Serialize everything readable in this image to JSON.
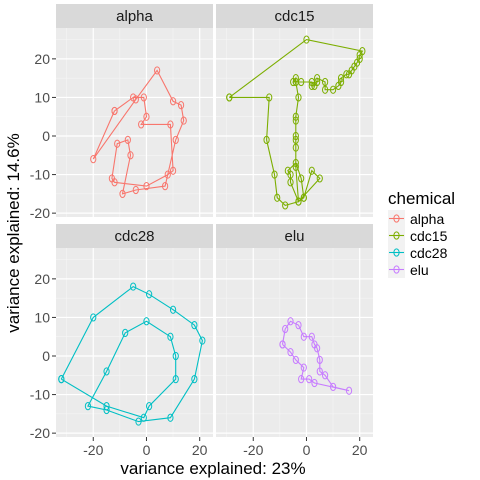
{
  "chart_data": {
    "type": "line",
    "xlabel": "variance explained: 23%",
    "ylabel": "variance explained: 14.6%",
    "xlim": [
      -34,
      25
    ],
    "ylim": [
      -21,
      28
    ],
    "x_ticks": [
      -20,
      0,
      20
    ],
    "y_ticks": [
      -20,
      -10,
      0,
      10,
      20
    ],
    "grid": true,
    "legend": {
      "title": "chemical",
      "position": "right",
      "entries": [
        "alpha",
        "cdc15",
        "cdc28",
        "elu"
      ]
    },
    "colors": {
      "alpha": "#F8766D",
      "cdc15": "#7CAE00",
      "cdc28": "#00BFC4",
      "elu": "#C77CFF"
    },
    "panels": [
      {
        "name": "alpha",
        "points": [
          [
            -12,
            6.5
          ],
          [
            -5,
            10
          ],
          [
            -1,
            10
          ],
          [
            0,
            5
          ],
          [
            -2,
            3
          ],
          [
            9,
            3
          ],
          [
            10,
            -9
          ],
          [
            8,
            -10
          ],
          [
            0,
            -13
          ],
          [
            -12,
            -12
          ],
          [
            -13,
            -11
          ],
          [
            -11,
            -2
          ],
          [
            -7,
            -1
          ],
          [
            -6,
            -5
          ],
          [
            -9,
            -15
          ],
          [
            -4,
            -14
          ],
          [
            7,
            -13
          ],
          [
            11,
            -1
          ],
          [
            14,
            4
          ],
          [
            13,
            8
          ],
          [
            10,
            9
          ],
          [
            4,
            17
          ],
          [
            -4,
            9.5
          ],
          [
            -20,
            -6
          ],
          [
            -12,
            6.5
          ]
        ]
      },
      {
        "name": "cdc15",
        "points": [
          [
            -29,
            10
          ],
          [
            -14,
            10
          ],
          [
            -15,
            -1
          ],
          [
            -12,
            -10
          ],
          [
            -11,
            -16
          ],
          [
            -8,
            -18
          ],
          [
            -3,
            -17
          ],
          [
            -1,
            -16
          ],
          [
            2,
            -9
          ],
          [
            5,
            -11
          ],
          [
            -3,
            -17
          ],
          [
            -6,
            -12
          ],
          [
            -6,
            -10
          ],
          [
            -7,
            -9
          ],
          [
            -4,
            -7
          ],
          [
            -2,
            -11
          ],
          [
            -1,
            -16
          ],
          [
            -3,
            -17
          ],
          [
            -4,
            -8
          ],
          [
            -4,
            -3
          ],
          [
            -4,
            -1
          ],
          [
            -4,
            0
          ],
          [
            -4,
            4
          ],
          [
            -4,
            5
          ],
          [
            -3,
            10
          ],
          [
            -4,
            14
          ],
          [
            -4,
            15
          ],
          [
            -5,
            14
          ],
          [
            -2,
            14
          ],
          [
            2,
            14
          ],
          [
            2,
            13
          ],
          [
            3,
            13
          ],
          [
            4,
            14
          ],
          [
            4,
            15
          ],
          [
            7,
            14
          ],
          [
            7,
            12
          ],
          [
            10,
            12
          ],
          [
            12,
            13
          ],
          [
            13,
            14
          ],
          [
            13,
            15
          ],
          [
            15,
            16
          ],
          [
            16,
            16
          ],
          [
            17,
            17
          ],
          [
            18,
            18
          ],
          [
            19,
            19
          ],
          [
            20,
            20
          ],
          [
            20,
            21
          ],
          [
            21,
            22
          ],
          [
            0,
            25
          ],
          [
            -29,
            10
          ]
        ]
      },
      {
        "name": "cdc28",
        "points": [
          [
            -32,
            -6
          ],
          [
            -20,
            10
          ],
          [
            -5,
            18
          ],
          [
            1,
            16
          ],
          [
            10,
            12
          ],
          [
            18,
            8
          ],
          [
            21,
            4
          ],
          [
            18,
            -6
          ],
          [
            9,
            -16
          ],
          [
            -3,
            -17
          ],
          [
            -15,
            -14
          ],
          [
            -22,
            -13
          ],
          [
            -15,
            -4
          ],
          [
            -8,
            6
          ],
          [
            0,
            9
          ],
          [
            9,
            5
          ],
          [
            11,
            0
          ],
          [
            11,
            -6
          ],
          [
            1,
            -13
          ],
          [
            -1,
            -16
          ],
          [
            -15,
            -13
          ],
          [
            -32,
            -6
          ]
        ]
      },
      {
        "name": "elu",
        "points": [
          [
            -9,
            3
          ],
          [
            -8,
            7
          ],
          [
            -6,
            9
          ],
          [
            -3,
            8
          ],
          [
            -1,
            5
          ],
          [
            2,
            5
          ],
          [
            3,
            3
          ],
          [
            4,
            2
          ],
          [
            5,
            -1
          ],
          [
            5,
            -4
          ],
          [
            7,
            -5
          ],
          [
            10,
            -8
          ],
          [
            16,
            -9
          ],
          [
            3,
            -7
          ],
          [
            1,
            -6
          ],
          [
            -2,
            -6
          ],
          [
            -1,
            -3
          ],
          [
            -4,
            -1
          ],
          [
            -6,
            1
          ],
          [
            -9,
            3
          ]
        ]
      }
    ]
  }
}
